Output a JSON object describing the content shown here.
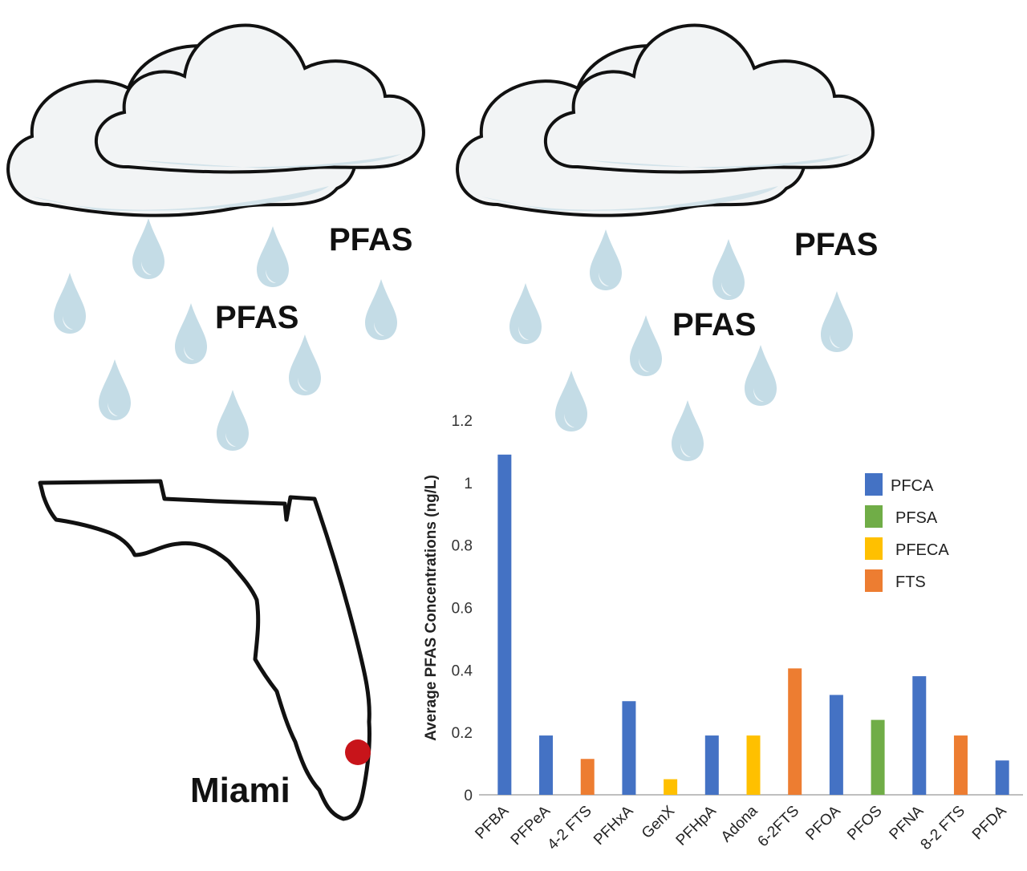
{
  "labels": {
    "pfas_1": "PFAS",
    "pfas_2": "PFAS",
    "pfas_3": "PFAS",
    "pfas_4": "PFAS",
    "city": "Miami"
  },
  "colors": {
    "cloud_fill": "#f2f4f5",
    "cloud_shade": "#d3e3ea",
    "drop_fill": "#c4dce6",
    "drop_highlight": "#eef6f9",
    "map_marker": "#c8141a"
  },
  "chart_data": {
    "type": "bar",
    "title": "",
    "xlabel": "",
    "ylabel": "Average PFAS Concentrations (ng/L)",
    "ylim": [
      0,
      1.2
    ],
    "yticks": [
      "0",
      "0.2",
      "0.4",
      "0.6",
      "0.8",
      "1",
      "1.2"
    ],
    "grid": false,
    "legend_position": "top-right",
    "categories": [
      "PFBA",
      "PFPeA",
      "4-2 FTS",
      "PFHxA",
      "GenX",
      "PFHpA",
      "Adona",
      "6-2FTS",
      "PFOA",
      "PFOS",
      "PFNA",
      "8-2 FTS",
      "PFDA"
    ],
    "values": [
      1.09,
      0.19,
      0.115,
      0.3,
      0.05,
      0.19,
      0.19,
      0.405,
      0.32,
      0.24,
      0.38,
      0.19,
      0.11
    ],
    "groups": [
      "PFCA",
      "PFCA",
      "FTS",
      "PFCA",
      "PFECA",
      "PFCA",
      "PFECA",
      "FTS",
      "PFCA",
      "PFSA",
      "PFCA",
      "FTS",
      "PFCA"
    ],
    "legend": [
      {
        "name": "PFCA",
        "color": "#4472c4"
      },
      {
        "name": "PFSA",
        "color": "#70ad47"
      },
      {
        "name": "PFECA",
        "color": "#ffc000"
      },
      {
        "name": "FTS",
        "color": "#ed7d31"
      }
    ]
  }
}
